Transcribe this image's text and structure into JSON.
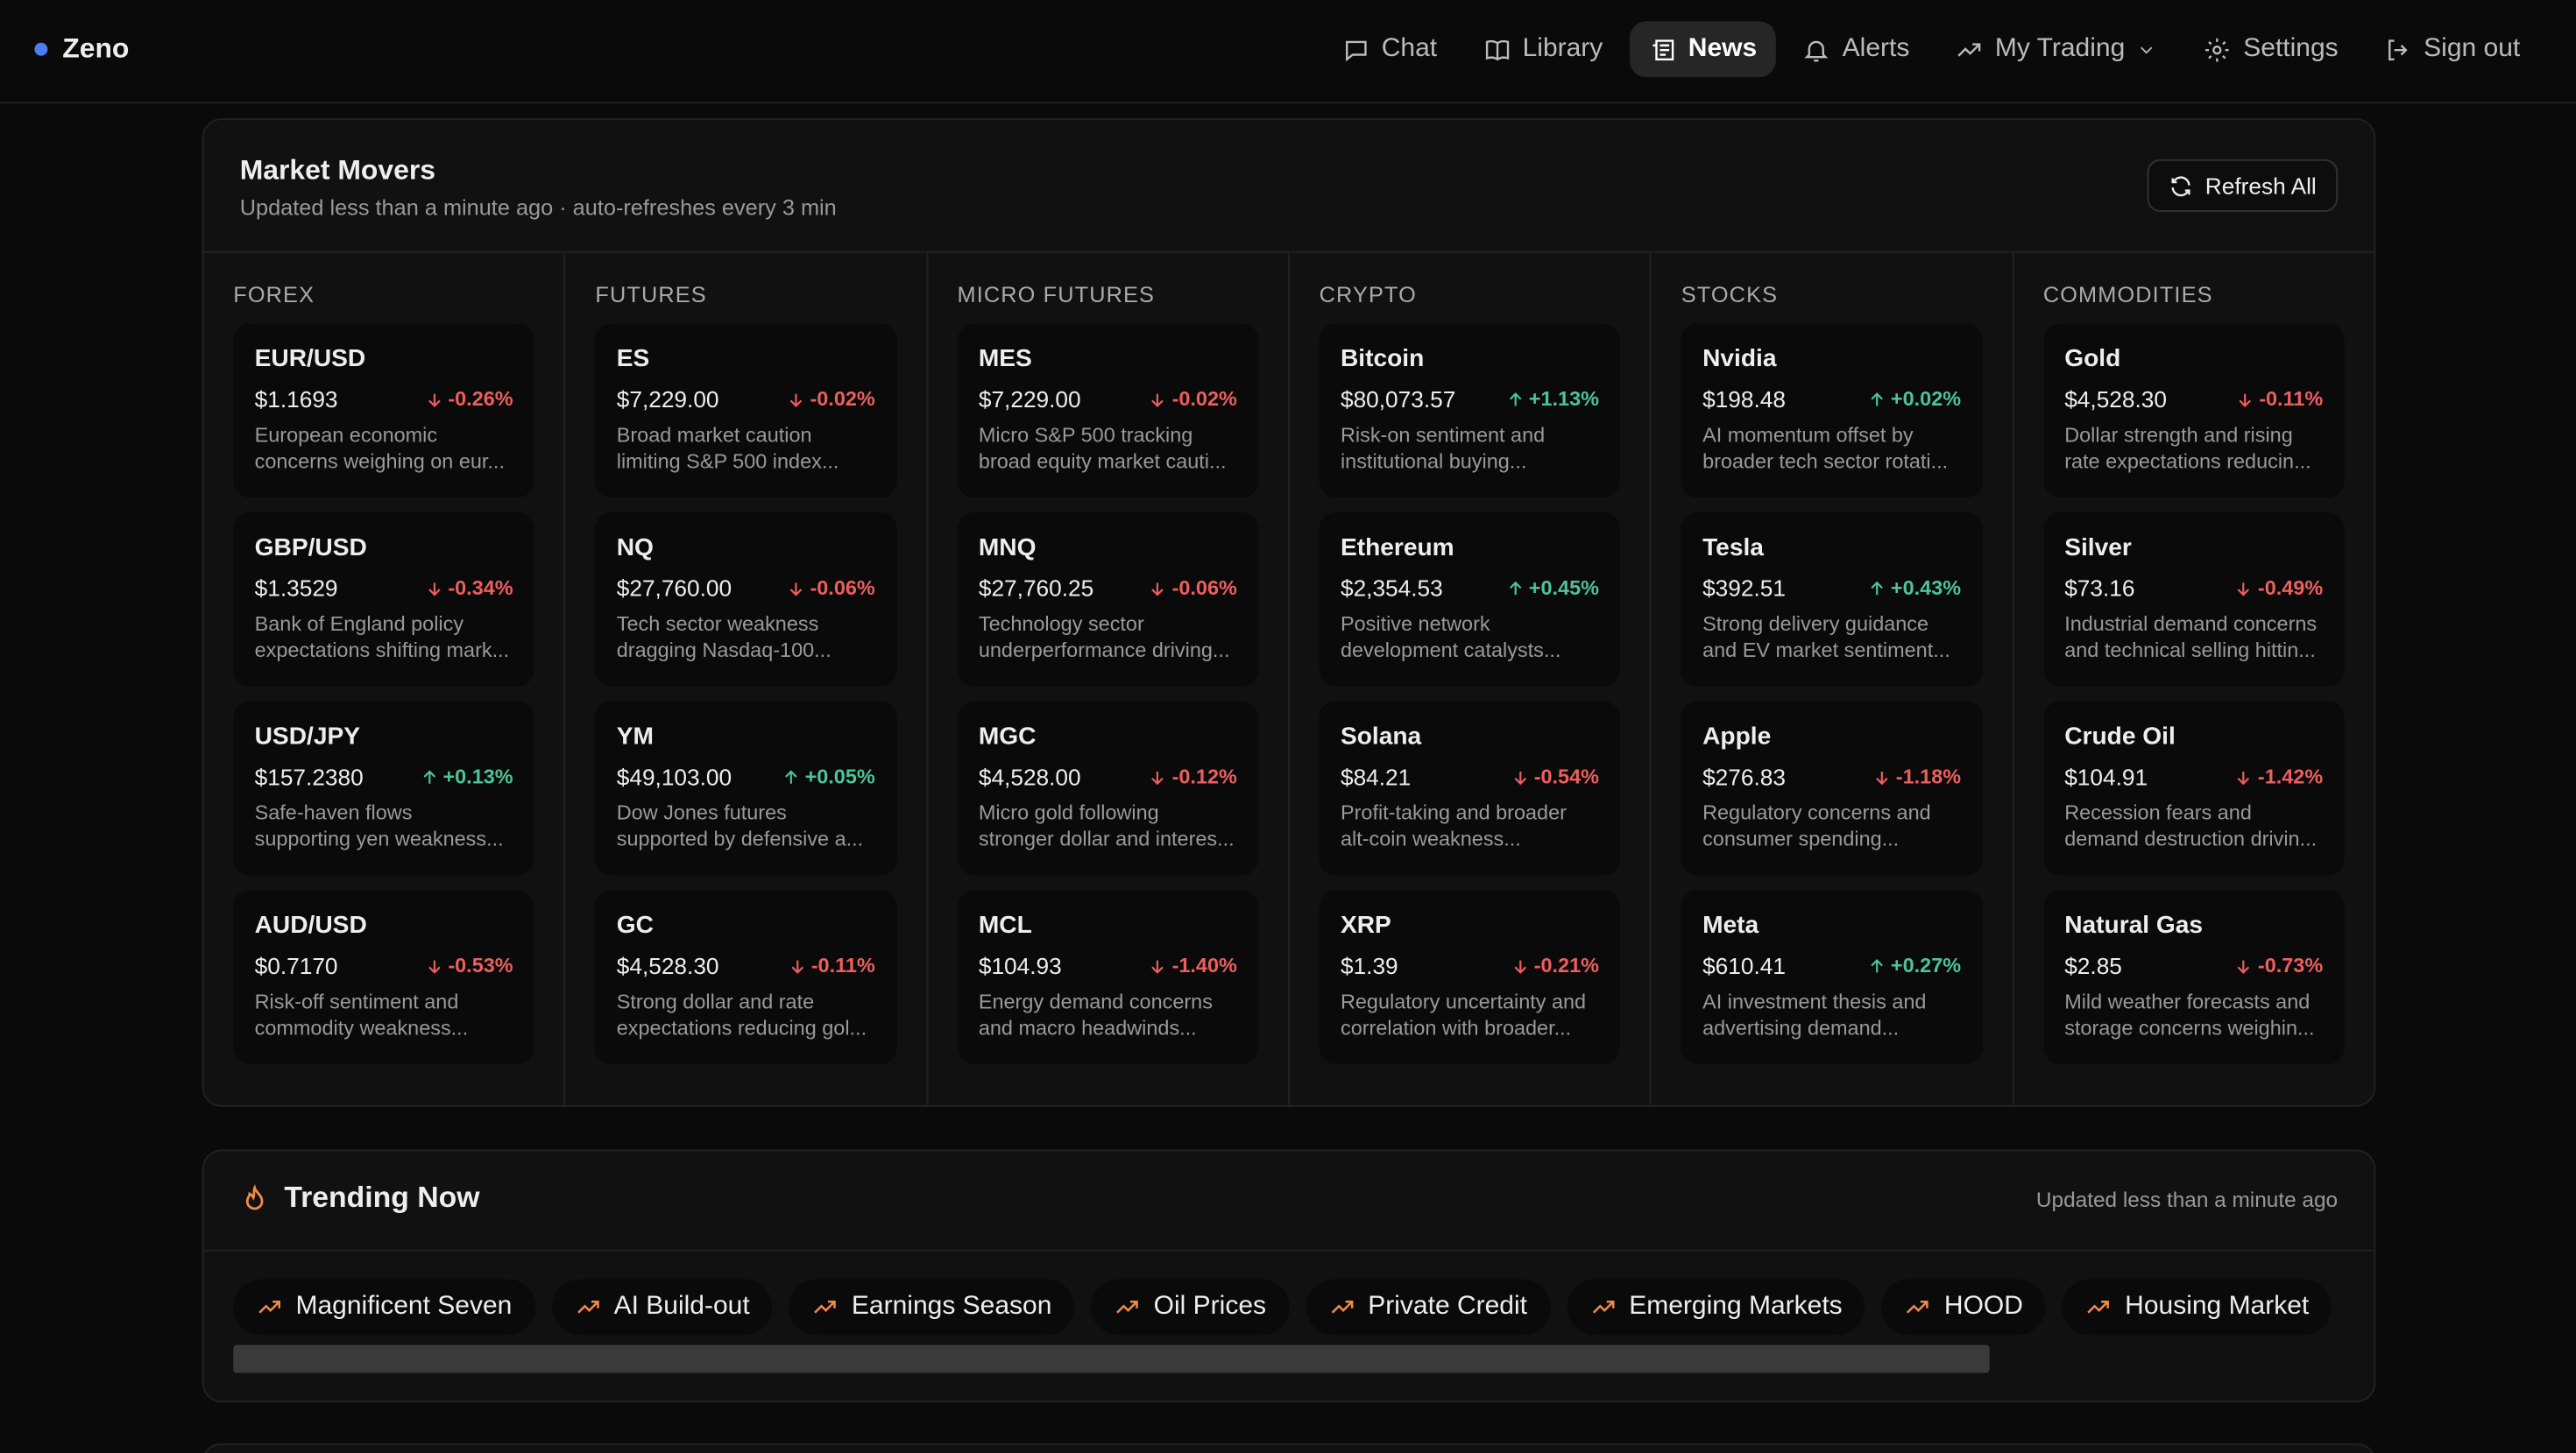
{
  "brand": "Zeno",
  "nav": [
    {
      "label": "Chat"
    },
    {
      "label": "Library"
    },
    {
      "label": "News",
      "active": true
    },
    {
      "label": "Alerts"
    },
    {
      "label": "My Trading"
    },
    {
      "label": "Settings"
    },
    {
      "label": "Sign out"
    }
  ],
  "market_movers": {
    "title": "Market Movers",
    "subtitle": "Updated less than a minute ago · auto-refreshes every 3 min",
    "refresh": "Refresh All",
    "columns": [
      {
        "label": "FOREX",
        "items": [
          {
            "name": "EUR/USD",
            "price": "$1.1693",
            "change": "-0.26%",
            "note": "European economic concerns weighing on eur..."
          },
          {
            "name": "GBP/USD",
            "price": "$1.3529",
            "change": "-0.34%",
            "note": "Bank of England policy expectations shifting mark..."
          },
          {
            "name": "USD/JPY",
            "price": "$157.2380",
            "change": "+0.13%",
            "note": "Safe-haven flows supporting yen weakness..."
          },
          {
            "name": "AUD/USD",
            "price": "$0.7170",
            "change": "-0.53%",
            "note": "Risk-off sentiment and commodity weakness..."
          }
        ]
      },
      {
        "label": "FUTURES",
        "items": [
          {
            "name": "ES",
            "price": "$7,229.00",
            "change": "-0.02%",
            "note": "Broad market caution limiting S&P 500 index..."
          },
          {
            "name": "NQ",
            "price": "$27,760.00",
            "change": "-0.06%",
            "note": "Tech sector weakness dragging Nasdaq-100..."
          },
          {
            "name": "YM",
            "price": "$49,103.00",
            "change": "+0.05%",
            "note": "Dow Jones futures supported by defensive a..."
          },
          {
            "name": "GC",
            "price": "$4,528.30",
            "change": "-0.11%",
            "note": "Strong dollar and rate expectations reducing gol..."
          }
        ]
      },
      {
        "label": "MICRO FUTURES",
        "items": [
          {
            "name": "MES",
            "price": "$7,229.00",
            "change": "-0.02%",
            "note": "Micro S&P 500 tracking broad equity market cauti..."
          },
          {
            "name": "MNQ",
            "price": "$27,760.25",
            "change": "-0.06%",
            "note": "Technology sector underperformance driving..."
          },
          {
            "name": "MGC",
            "price": "$4,528.00",
            "change": "-0.12%",
            "note": "Micro gold following stronger dollar and interes..."
          },
          {
            "name": "MCL",
            "price": "$104.93",
            "change": "-1.40%",
            "note": "Energy demand concerns and macro headwinds..."
          }
        ]
      },
      {
        "label": "CRYPTO",
        "items": [
          {
            "name": "Bitcoin",
            "price": "$80,073.57",
            "change": "+1.13%",
            "note": "Risk-on sentiment and institutional buying..."
          },
          {
            "name": "Ethereum",
            "price": "$2,354.53",
            "change": "+0.45%",
            "note": "Positive network development catalysts..."
          },
          {
            "name": "Solana",
            "price": "$84.21",
            "change": "-0.54%",
            "note": "Profit-taking and broader alt-coin weakness..."
          },
          {
            "name": "XRP",
            "price": "$1.39",
            "change": "-0.21%",
            "note": "Regulatory uncertainty and correlation with broader..."
          }
        ]
      },
      {
        "label": "STOCKS",
        "items": [
          {
            "name": "Nvidia",
            "price": "$198.48",
            "change": "+0.02%",
            "note": "AI momentum offset by broader tech sector rotati..."
          },
          {
            "name": "Tesla",
            "price": "$392.51",
            "change": "+0.43%",
            "note": "Strong delivery guidance and EV market sentiment..."
          },
          {
            "name": "Apple",
            "price": "$276.83",
            "change": "-1.18%",
            "note": "Regulatory concerns and consumer spending..."
          },
          {
            "name": "Meta",
            "price": "$610.41",
            "change": "+0.27%",
            "note": "AI investment thesis and advertising demand..."
          }
        ]
      },
      {
        "label": "COMMODITIES",
        "items": [
          {
            "name": "Gold",
            "price": "$4,528.30",
            "change": "-0.11%",
            "note": "Dollar strength and rising rate expectations reducin..."
          },
          {
            "name": "Silver",
            "price": "$73.16",
            "change": "-0.49%",
            "note": "Industrial demand concerns and technical selling hittin..."
          },
          {
            "name": "Crude Oil",
            "price": "$104.91",
            "change": "-1.42%",
            "note": "Recession fears and demand destruction drivin..."
          },
          {
            "name": "Natural Gas",
            "price": "$2.85",
            "change": "-0.73%",
            "note": "Mild weather forecasts and storage concerns weighin..."
          }
        ]
      }
    ]
  },
  "trending": {
    "title": "Trending Now",
    "updated": "Updated less than a minute ago",
    "topics": [
      "Magnificent Seven",
      "AI Build-out",
      "Earnings Season",
      "Oil Prices",
      "Private Credit",
      "Emerging Markets",
      "HOOD",
      "Housing Market"
    ]
  }
}
